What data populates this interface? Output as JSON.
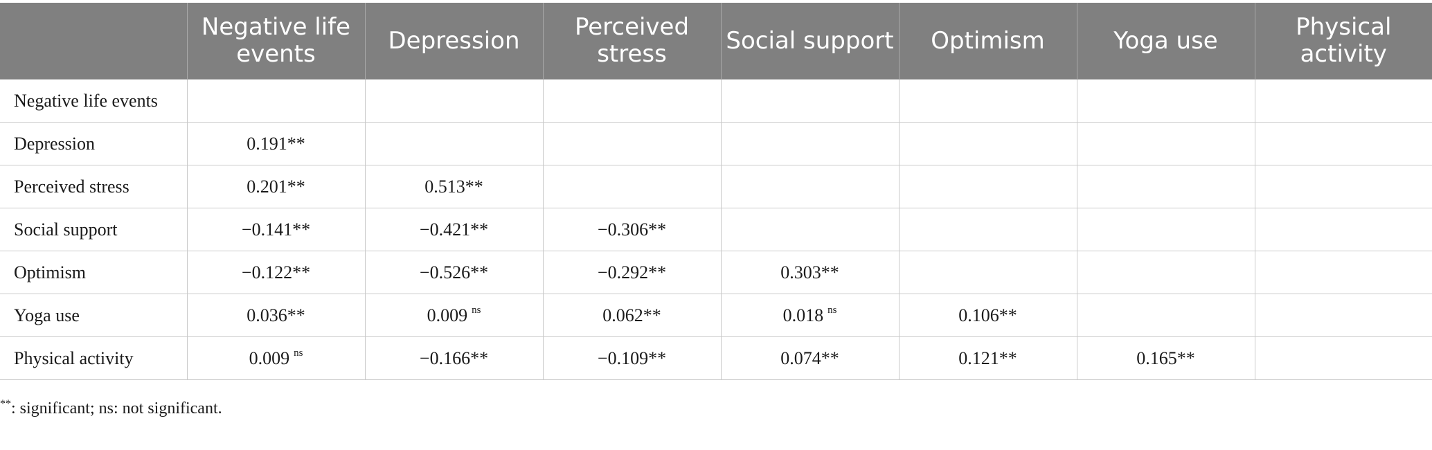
{
  "table": {
    "columns": [
      "",
      "Negative life events",
      "Depression",
      "Perceived stress",
      "Social support",
      "Optimism",
      "Yoga use",
      "Physical activity"
    ],
    "rows": [
      {
        "label": "Negative life events",
        "cells": [
          {
            "v": "",
            "m": ""
          },
          {
            "v": "",
            "m": ""
          },
          {
            "v": "",
            "m": ""
          },
          {
            "v": "",
            "m": ""
          },
          {
            "v": "",
            "m": ""
          },
          {
            "v": "",
            "m": ""
          },
          {
            "v": "",
            "m": ""
          }
        ]
      },
      {
        "label": "Depression",
        "cells": [
          {
            "v": "0.191",
            "m": "**"
          },
          {
            "v": "",
            "m": ""
          },
          {
            "v": "",
            "m": ""
          },
          {
            "v": "",
            "m": ""
          },
          {
            "v": "",
            "m": ""
          },
          {
            "v": "",
            "m": ""
          },
          {
            "v": "",
            "m": ""
          }
        ]
      },
      {
        "label": "Perceived stress",
        "cells": [
          {
            "v": "0.201",
            "m": "**"
          },
          {
            "v": "0.513",
            "m": "**"
          },
          {
            "v": "",
            "m": ""
          },
          {
            "v": "",
            "m": ""
          },
          {
            "v": "",
            "m": ""
          },
          {
            "v": "",
            "m": ""
          },
          {
            "v": "",
            "m": ""
          }
        ]
      },
      {
        "label": "Social support",
        "cells": [
          {
            "v": "−0.141",
            "m": "**"
          },
          {
            "v": "−0.421",
            "m": "**"
          },
          {
            "v": "−0.306",
            "m": "**"
          },
          {
            "v": "",
            "m": ""
          },
          {
            "v": "",
            "m": ""
          },
          {
            "v": "",
            "m": ""
          },
          {
            "v": "",
            "m": ""
          }
        ]
      },
      {
        "label": "Optimism",
        "cells": [
          {
            "v": "−0.122",
            "m": "**"
          },
          {
            "v": "−0.526",
            "m": "**"
          },
          {
            "v": "−0.292",
            "m": "**"
          },
          {
            "v": "0.303",
            "m": "**"
          },
          {
            "v": "",
            "m": ""
          },
          {
            "v": "",
            "m": ""
          },
          {
            "v": "",
            "m": ""
          }
        ]
      },
      {
        "label": "Yoga use",
        "cells": [
          {
            "v": "0.036",
            "m": "**"
          },
          {
            "v": "0.009",
            "m": "ns"
          },
          {
            "v": "0.062",
            "m": "**"
          },
          {
            "v": "0.018",
            "m": "ns"
          },
          {
            "v": "0.106",
            "m": "**"
          },
          {
            "v": "",
            "m": ""
          },
          {
            "v": "",
            "m": ""
          }
        ]
      },
      {
        "label": "Physical activity",
        "cells": [
          {
            "v": "0.009",
            "m": "ns"
          },
          {
            "v": "−0.166",
            "m": "**"
          },
          {
            "v": "−0.109",
            "m": "**"
          },
          {
            "v": "0.074",
            "m": "**"
          },
          {
            "v": "0.121",
            "m": "**"
          },
          {
            "v": "0.165",
            "m": "**"
          },
          {
            "v": "",
            "m": ""
          }
        ]
      }
    ]
  },
  "footnote": {
    "symbol": "**",
    "text": ": significant; ns: not significant."
  }
}
